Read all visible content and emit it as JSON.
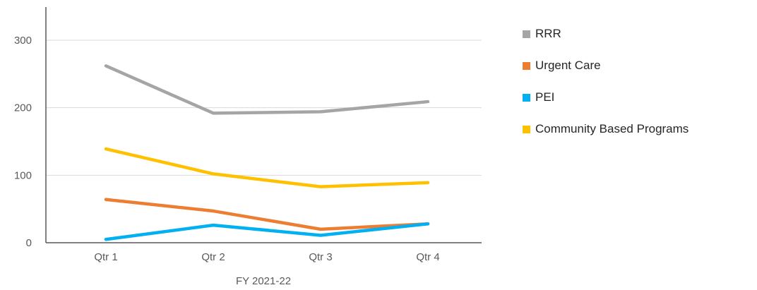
{
  "chart_data": {
    "type": "line",
    "categories": [
      "Qtr 1",
      "Qtr 2",
      "Qtr 3",
      "Qtr 4"
    ],
    "xlabel": "FY 2021-22",
    "ylabel": "",
    "ylim": [
      0,
      300
    ],
    "yticks": [
      0,
      100,
      200,
      300
    ],
    "grid": true,
    "legend_position": "right",
    "series": [
      {
        "name": "RRR",
        "color": "#A5A5A5",
        "values": [
          262,
          192,
          194,
          209
        ]
      },
      {
        "name": "Urgent Care",
        "color": "#ED7D31",
        "values": [
          64,
          47,
          20,
          28
        ]
      },
      {
        "name": "PEI",
        "color": "#00B0F0",
        "values": [
          5,
          26,
          11,
          28
        ]
      },
      {
        "name": "Community Based Programs",
        "color": "#FFC000",
        "values": [
          139,
          102,
          83,
          89
        ]
      }
    ]
  }
}
